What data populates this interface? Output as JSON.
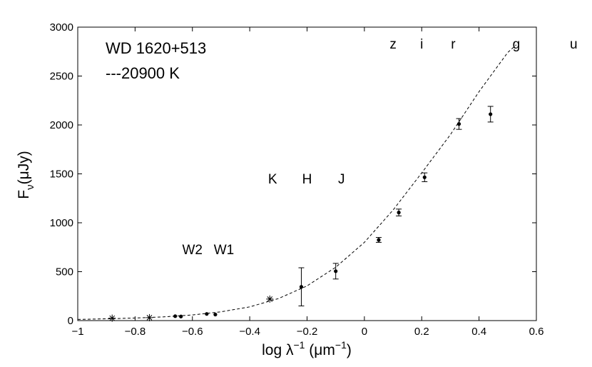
{
  "chart_data": {
    "type": "scatter",
    "title": "",
    "object_label": "WD 1620+513",
    "model_label": "---20900  K",
    "xlabel": {
      "main": "log λ",
      "sup1": "−1",
      "mid": " (μm",
      "sup2": "−1",
      "end": ")"
    },
    "ylabel": {
      "main": "F",
      "sub": "ν",
      "end": "(μJy)"
    },
    "xlim": [
      -1,
      0.6
    ],
    "ylim": [
      0,
      3000
    ],
    "xticks": [
      -1,
      -0.8,
      -0.6,
      -0.4,
      -0.2,
      0,
      0.2,
      0.4,
      0.6
    ],
    "xtick_labels": [
      "−1",
      "−0.8",
      "−0.6",
      "−0.4",
      "−0.2",
      "0",
      "0.2",
      "0.4",
      "0.6"
    ],
    "yticks": [
      0,
      500,
      1000,
      1500,
      2000,
      2500,
      3000
    ],
    "ytick_labels": [
      "0",
      "500",
      "1000",
      "1500",
      "2000",
      "2500",
      "3000"
    ],
    "grid": false,
    "band_labels": [
      {
        "text": "z",
        "x": 0.1,
        "y": 2780
      },
      {
        "text": "i",
        "x": 0.2,
        "y": 2780
      },
      {
        "text": "r",
        "x": 0.31,
        "y": 2780
      },
      {
        "text": "g",
        "x": 0.53,
        "y": 2780
      },
      {
        "text": "u",
        "x": 0.73,
        "y": 2780
      },
      {
        "text": "K",
        "x": -0.32,
        "y": 1400
      },
      {
        "text": "H",
        "x": -0.2,
        "y": 1400
      },
      {
        "text": "J",
        "x": -0.08,
        "y": 1400
      },
      {
        "text": "W2",
        "x": -0.6,
        "y": 680
      },
      {
        "text": "W1",
        "x": -0.49,
        "y": 680
      }
    ],
    "series": [
      {
        "marker": "dot-errorbar",
        "points": [
          {
            "x": 0.44,
            "y": 2110,
            "err": 80
          },
          {
            "x": 0.33,
            "y": 2010,
            "err": 55
          },
          {
            "x": 0.21,
            "y": 1465,
            "err": 45
          },
          {
            "x": 0.12,
            "y": 1105,
            "err": 35
          },
          {
            "x": 0.05,
            "y": 825,
            "err": 25
          },
          {
            "x": -0.1,
            "y": 505,
            "err": 80
          },
          {
            "x": -0.22,
            "y": 345,
            "err": 195
          }
        ]
      },
      {
        "marker": "dot",
        "points": [
          {
            "x": -0.66,
            "y": 45
          },
          {
            "x": -0.64,
            "y": 42
          },
          {
            "x": -0.55,
            "y": 68
          },
          {
            "x": -0.52,
            "y": 62
          }
        ]
      },
      {
        "marker": "asterisk",
        "points": [
          {
            "x": -0.88,
            "y": 25
          },
          {
            "x": -0.75,
            "y": 30
          },
          {
            "x": -0.33,
            "y": 220
          }
        ]
      }
    ],
    "model_curve": {
      "style": "dashed",
      "x": [
        -1.0,
        -0.9,
        -0.8,
        -0.7,
        -0.6,
        -0.5,
        -0.4,
        -0.3,
        -0.2,
        -0.1,
        0.0,
        0.1,
        0.2,
        0.3,
        0.4,
        0.5,
        0.53
      ],
      "y": [
        12,
        18,
        26,
        38,
        58,
        90,
        140,
        225,
        355,
        545,
        800,
        1130,
        1510,
        1900,
        2340,
        2740,
        2820
      ]
    }
  }
}
